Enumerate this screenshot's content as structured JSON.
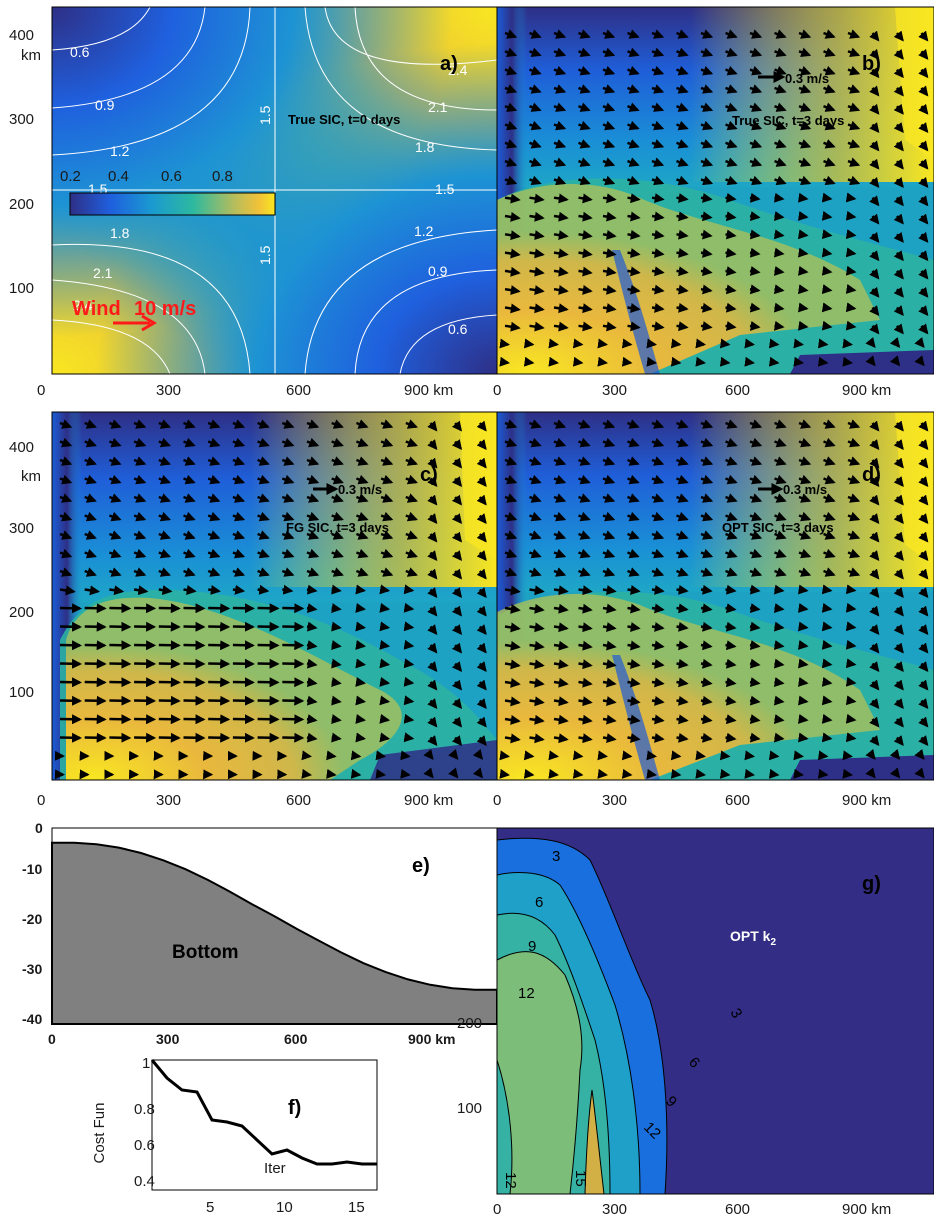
{
  "chart_data": [
    {
      "id": "a",
      "type": "heatmap",
      "panel_label": "a)",
      "title": "True SIC, t=0 days",
      "xticks": [
        "0",
        "300",
        "600",
        "900 km"
      ],
      "yticks": [
        "100",
        "200",
        "300",
        "400"
      ],
      "y_unit": "km",
      "xlim": [
        0,
        1000
      ],
      "ylim": [
        0,
        450
      ],
      "colorbar": {
        "ticks": [
          "0.2",
          "0.4",
          "0.6",
          "0.8"
        ],
        "range": [
          0.1,
          0.95
        ]
      },
      "contour_labels": [
        "0.6",
        "0.9",
        "1.2",
        "1.5",
        "1.8",
        "2.1",
        "2.4",
        "1.5",
        "1.5",
        "2.4",
        "2.1",
        "1.8",
        "1.5",
        "1.2",
        "0.9",
        "0.6"
      ],
      "wind": {
        "label": "Wind",
        "speed": "10 m/s",
        "color": "#ff1a1a"
      }
    },
    {
      "id": "b",
      "type": "heatmap",
      "panel_label": "b)",
      "title": "True SIC, t=3 days",
      "arrow_scale": "0.3 m/s",
      "xticks": [
        "0",
        "300",
        "600",
        "900 km"
      ]
    },
    {
      "id": "c",
      "type": "heatmap",
      "panel_label": "c)",
      "title": "FG SIC, t=3 days",
      "arrow_scale": "0.3 m/s",
      "xticks": [
        "0",
        "300",
        "600",
        "900 km"
      ],
      "yticks": [
        "100",
        "200",
        "300",
        "400"
      ],
      "y_unit": "km"
    },
    {
      "id": "d",
      "type": "heatmap",
      "panel_label": "d)",
      "title": "OPT SIC, t=3 days",
      "arrow_scale": "0.3 m/s",
      "xticks": [
        "0",
        "300",
        "600",
        "900 km"
      ]
    },
    {
      "id": "e",
      "type": "area",
      "panel_label": "e)",
      "title": "Bottom",
      "xticks": [
        "0",
        "300",
        "600",
        "900 km"
      ],
      "yticks": [
        "0",
        "-10",
        "-20",
        "-30",
        "-40"
      ],
      "xlim": [
        0,
        1000
      ],
      "ylim": [
        -40,
        0
      ],
      "x": [
        0,
        50,
        100,
        150,
        200,
        250,
        300,
        350,
        400,
        450,
        500,
        550,
        600,
        650,
        700,
        750,
        800,
        850,
        900,
        950,
        1000
      ],
      "y": [
        -3,
        -3,
        -3.3,
        -4,
        -5.1,
        -6.6,
        -8.4,
        -10.6,
        -13,
        -15.6,
        -18,
        -20.6,
        -23,
        -25.4,
        -27.6,
        -29.4,
        -30.9,
        -32,
        -32.7,
        -33,
        -33
      ],
      "fill": "#808080"
    },
    {
      "id": "f",
      "type": "line",
      "panel_label": "f)",
      "xlabel": "Iter",
      "ylabel": "Cost Fun",
      "xticks": [
        "5",
        "10",
        "15"
      ],
      "yticks": [
        "0.4",
        "0.6",
        "0.8",
        "1"
      ],
      "xlim": [
        1,
        16
      ],
      "ylim": [
        0.35,
        1.0
      ],
      "x": [
        1,
        2,
        3,
        4,
        5,
        6,
        7,
        8,
        9,
        10,
        11,
        12,
        13,
        14,
        15,
        16
      ],
      "y": [
        1.0,
        0.91,
        0.85,
        0.84,
        0.7,
        0.69,
        0.67,
        0.6,
        0.53,
        0.55,
        0.51,
        0.48,
        0.48,
        0.49,
        0.48,
        0.48
      ]
    },
    {
      "id": "g",
      "type": "heatmap",
      "panel_label": "g)",
      "title_main": "OPT k",
      "title_sub": "2",
      "xticks": [
        "0",
        "300",
        "600",
        "900 km"
      ],
      "yticks": [
        "100",
        "200"
      ],
      "contour_labels": [
        "3",
        "6",
        "9",
        "12",
        "3",
        "6",
        "9",
        "12",
        "12",
        "15"
      ],
      "levels": [
        3,
        6,
        9,
        12,
        15
      ],
      "colors": [
        "#342d85",
        "#1a6fdf",
        "#1fa0c9",
        "#35b2a3",
        "#7dbd7a",
        "#d3b046"
      ]
    }
  ]
}
